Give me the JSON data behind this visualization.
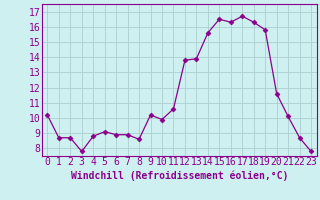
{
  "x": [
    0,
    1,
    2,
    3,
    4,
    5,
    6,
    7,
    8,
    9,
    10,
    11,
    12,
    13,
    14,
    15,
    16,
    17,
    18,
    19,
    20,
    21,
    22,
    23
  ],
  "y": [
    10.2,
    8.7,
    8.7,
    7.8,
    8.8,
    9.1,
    8.9,
    8.9,
    8.6,
    10.2,
    9.9,
    10.6,
    13.8,
    13.9,
    15.6,
    16.5,
    16.3,
    16.7,
    16.3,
    15.8,
    11.6,
    10.1,
    8.7,
    7.8
  ],
  "line_color": "#8b008b",
  "marker": "D",
  "marker_size": 2.5,
  "bg_color": "#cff0f0",
  "grid_color": "#aacfcf",
  "xlabel": "Windchill (Refroidissement éolien,°C)",
  "ylabel_ticks": [
    8,
    9,
    10,
    11,
    12,
    13,
    14,
    15,
    16,
    17
  ],
  "xlim": [
    -0.5,
    23.5
  ],
  "ylim": [
    7.5,
    17.5
  ],
  "xlabel_fontsize": 7,
  "tick_fontsize": 7,
  "title": ""
}
